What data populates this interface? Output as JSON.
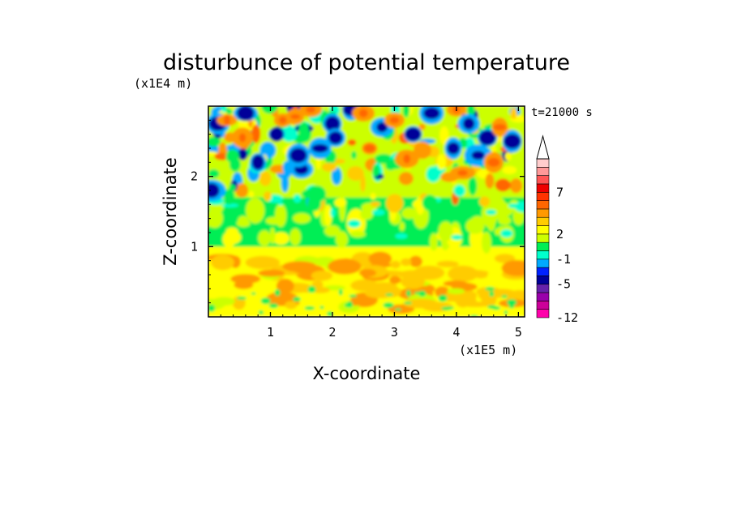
{
  "chart_data": {
    "type": "heatmap",
    "title": "disturbunce of potential temperature",
    "xlabel": "X-coordinate",
    "ylabel": "Z-coordinate",
    "x_unit": "(x1E5 m)",
    "y_unit": "(x1E4 m)",
    "time_label": "t=21000 s",
    "xlim": [
      0,
      5.1
    ],
    "ylim": [
      0,
      3.0
    ],
    "x_ticks": [
      "1",
      "2",
      "3",
      "4",
      "5"
    ],
    "x_tick_values": [
      1,
      2,
      3,
      4,
      5
    ],
    "y_ticks": [
      "1",
      "2"
    ],
    "y_tick_values": [
      1,
      2
    ],
    "grid": false,
    "colorbar": {
      "placement": "right",
      "extend": "max",
      "colors": [
        "#ff00aa",
        "#cc0099",
        "#9900aa",
        "#6622aa",
        "#000099",
        "#0022ff",
        "#00aaff",
        "#00ffcc",
        "#00ee55",
        "#ccff00",
        "#ffff00",
        "#ffcc00",
        "#ff9900",
        "#ff6600",
        "#ff3300",
        "#ee0000",
        "#ff5555",
        "#ff9999",
        "#ffcccc"
      ],
      "tick_labels": [
        "-12",
        "-5",
        "-1",
        "2",
        "7"
      ],
      "tick_values": [
        -12,
        -5,
        -1,
        2,
        7
      ]
    },
    "zones": [
      {
        "z_range": [
          0.0,
          1.0
        ],
        "dominant_values": [
          1,
          2,
          3
        ],
        "description_levels": "yellow to orange, 2-3 warm bands"
      },
      {
        "z_range": [
          1.0,
          1.7
        ],
        "dominant_values": [
          0,
          -1,
          1
        ],
        "description_levels": "green with yellow streaks"
      },
      {
        "z_range": [
          1.7,
          3.0
        ],
        "dominant_values": [
          -5,
          -1,
          2,
          5
        ],
        "description_levels": "alternating blue and orange-red cells"
      }
    ]
  }
}
